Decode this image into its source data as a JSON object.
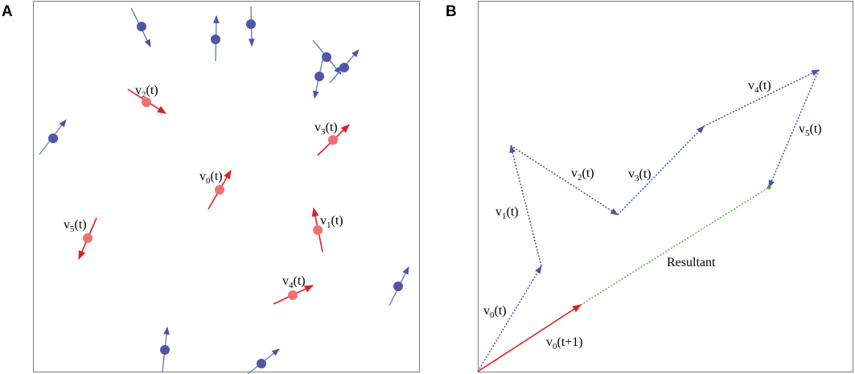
{
  "colors": {
    "blue": "#5560a8",
    "blue_line": "#7f8ec8",
    "red": "#e02020",
    "red_dot": "#f07070",
    "green": "#4caf30",
    "frame": "#7a7a7a"
  },
  "panel_a": {
    "letter": "A",
    "labels": {
      "v0": {
        "v": "v",
        "sub": "0",
        "t": "(t)"
      },
      "v1": {
        "v": "v",
        "sub": "1",
        "t": "(t)"
      },
      "v2": {
        "v": "v",
        "sub": "2",
        "t": "(t)"
      },
      "v3": {
        "v": "v",
        "sub": "3",
        "t": "(t)"
      },
      "v4": {
        "v": "v",
        "sub": "4",
        "t": "(t)"
      },
      "v5": {
        "v": "v",
        "sub": "5",
        "t": "(t)"
      }
    }
  },
  "panel_b": {
    "letter": "B",
    "labels": {
      "v0": {
        "v": "v",
        "sub": "0",
        "t": "(t)"
      },
      "v1": {
        "v": "v",
        "sub": "1",
        "t": "(t)"
      },
      "v2": {
        "v": "v",
        "sub": "2",
        "t": "(t)"
      },
      "v3": {
        "v": "v",
        "sub": "3",
        "t": "(t)"
      },
      "v4": {
        "v": "v",
        "sub": "4",
        "t": "(t)"
      },
      "v5": {
        "v": "v",
        "sub": "5",
        "t": "(t)"
      },
      "v0next": {
        "v": "v",
        "sub": "0",
        "t": "(t+1)"
      },
      "resultant": "Resultant"
    }
  }
}
